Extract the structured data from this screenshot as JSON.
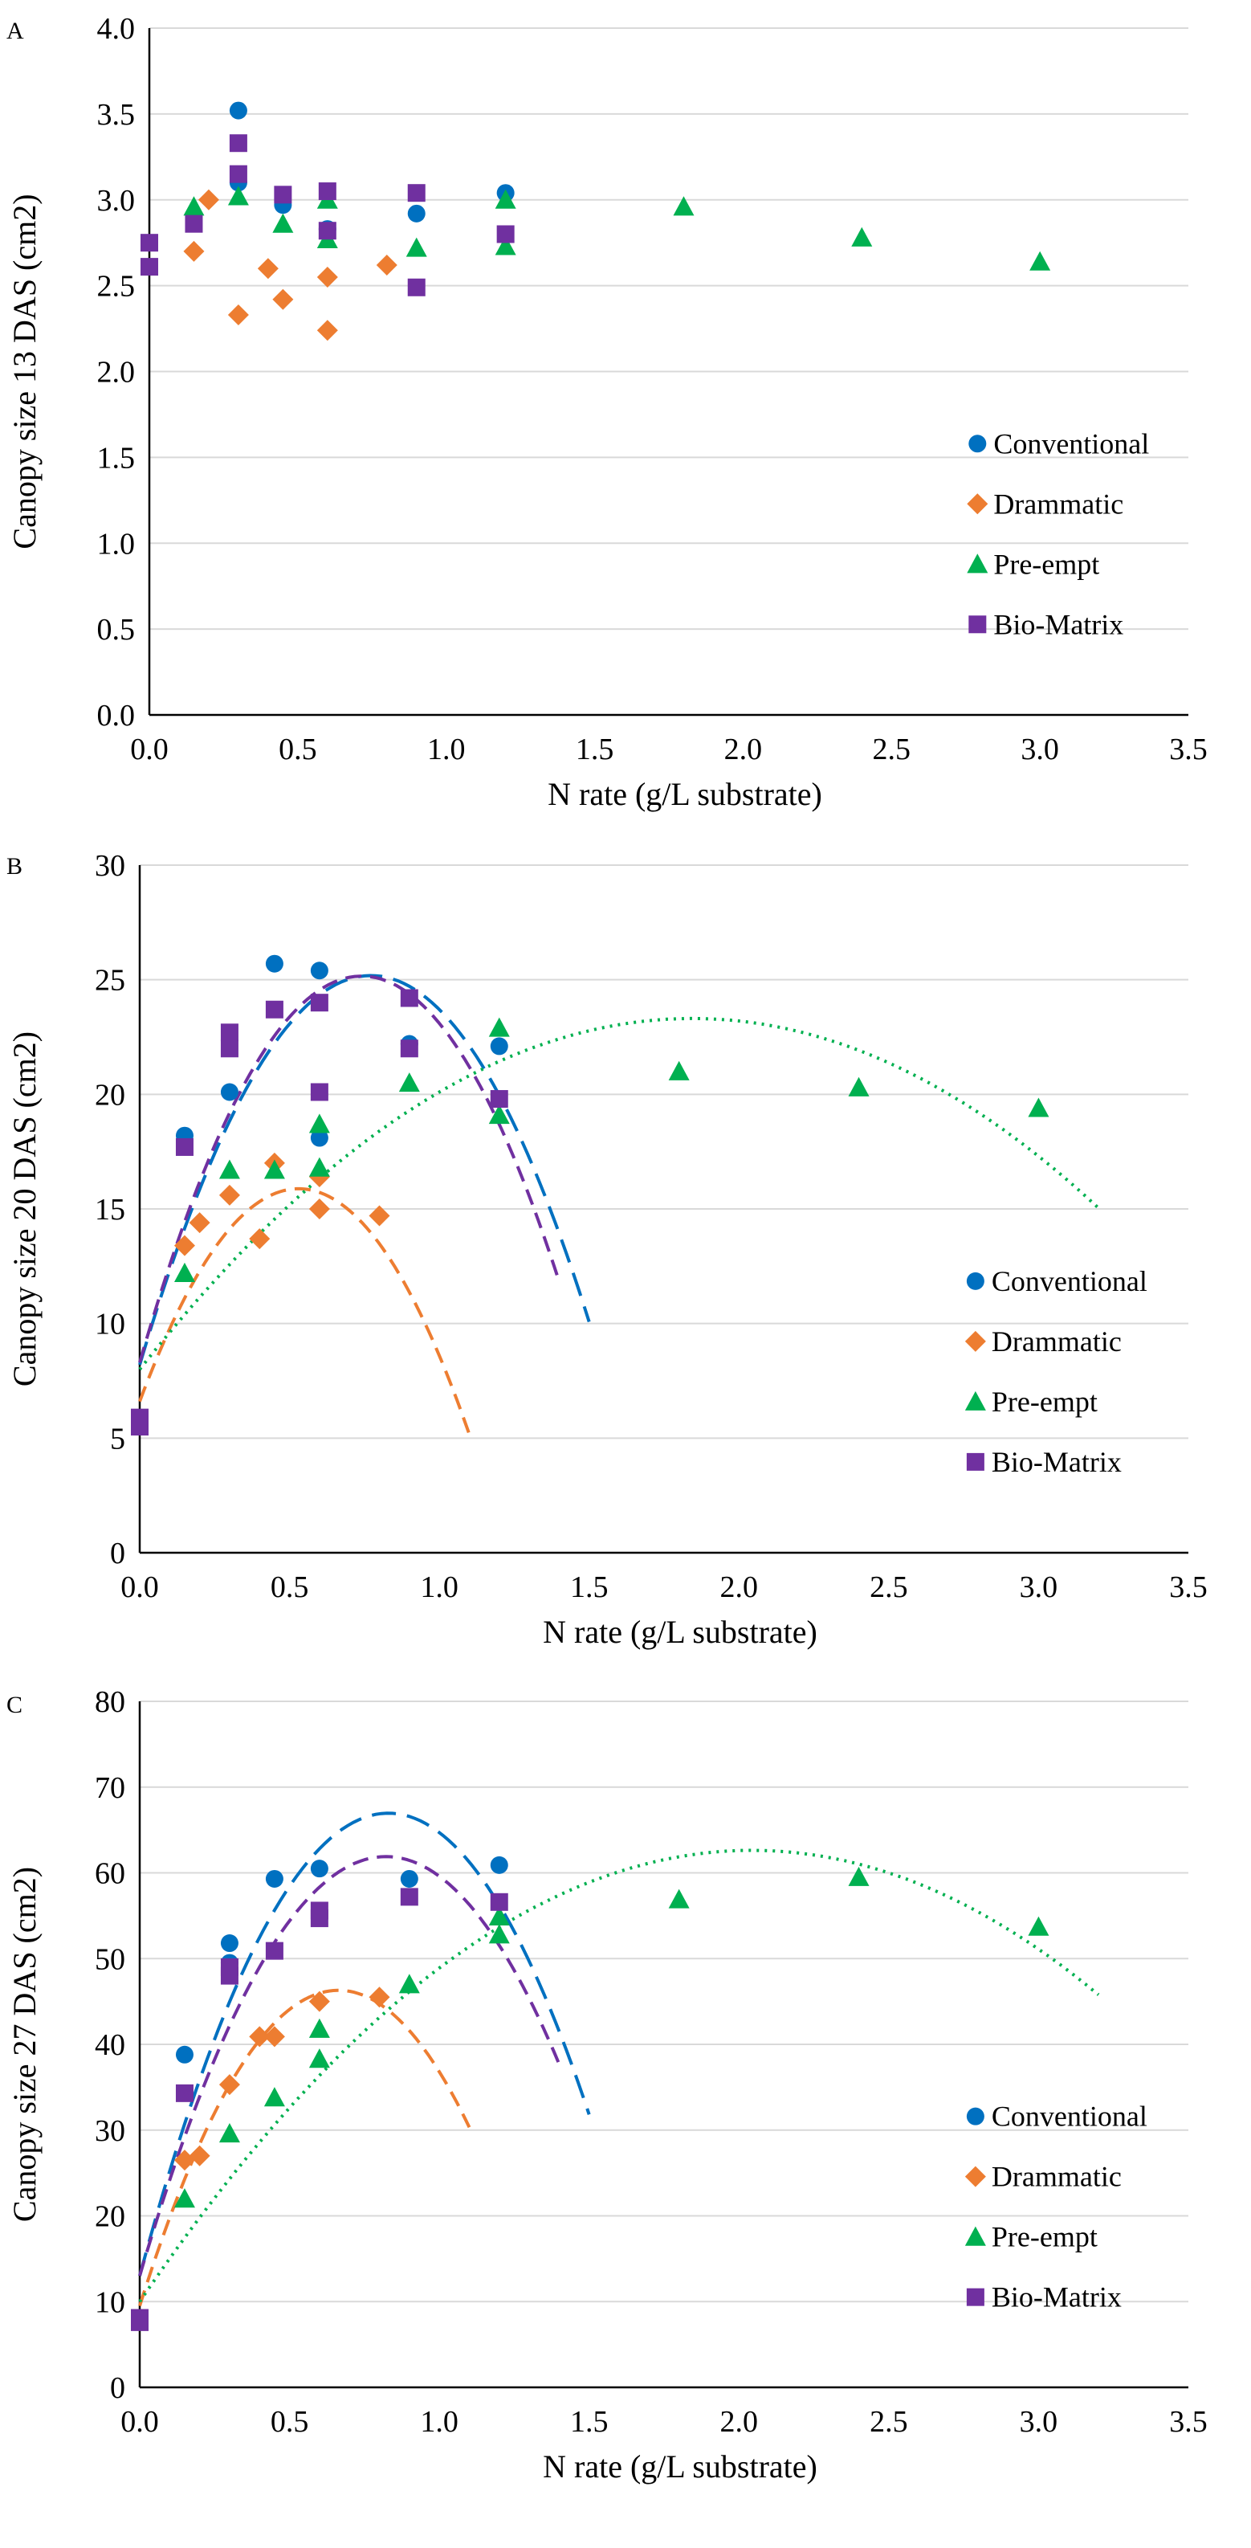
{
  "colors": {
    "Conventional": "#0070c0",
    "Drammatic": "#ed7d31",
    "Pre-empt": "#00b050",
    "Bio-Matrix": "#7030a0",
    "grid": "#d9d9d9"
  },
  "chart_data": [
    {
      "type": "scatter",
      "panel": "A",
      "title": "",
      "xlabel": "N rate (g/L substrate)",
      "ylabel": "Canopy size 13 DAS (cm2)",
      "xlim": [
        0,
        3.5
      ],
      "ylim": [
        0,
        4.0
      ],
      "xticks": [
        "0.0",
        "0.5",
        "1.0",
        "1.5",
        "2.0",
        "2.5",
        "3.0",
        "3.5"
      ],
      "yticks": [
        "0.0",
        "0.5",
        "1.0",
        "1.5",
        "2.0",
        "2.5",
        "3.0",
        "3.5",
        "4.0"
      ],
      "grid": true,
      "legend": "bottom-right",
      "series": [
        {
          "name": "Conventional",
          "marker": "circle",
          "points": [
            [
              0.3,
              3.52
            ],
            [
              0.3,
              3.1
            ],
            [
              0.45,
              2.97
            ],
            [
              0.6,
              2.83
            ],
            [
              0.9,
              2.92
            ],
            [
              1.2,
              3.04
            ]
          ],
          "fit": null
        },
        {
          "name": "Drammatic",
          "marker": "diamond",
          "points": [
            [
              0.15,
              2.7
            ],
            [
              0.2,
              3.0
            ],
            [
              0.3,
              2.33
            ],
            [
              0.4,
              2.6
            ],
            [
              0.45,
              2.42
            ],
            [
              0.6,
              2.55
            ],
            [
              0.6,
              2.24
            ],
            [
              0.8,
              2.62
            ]
          ],
          "fit": null
        },
        {
          "name": "Pre-empt",
          "marker": "triangle",
          "points": [
            [
              0.15,
              2.96
            ],
            [
              0.3,
              3.02
            ],
            [
              0.45,
              2.86
            ],
            [
              0.6,
              3.0
            ],
            [
              0.6,
              2.77
            ],
            [
              0.9,
              2.72
            ],
            [
              1.2,
              3.0
            ],
            [
              1.2,
              2.73
            ],
            [
              1.8,
              2.96
            ],
            [
              2.4,
              2.78
            ],
            [
              3.0,
              2.64
            ]
          ],
          "fit": null
        },
        {
          "name": "Bio-Matrix",
          "marker": "square",
          "points": [
            [
              0.0,
              2.75
            ],
            [
              0.0,
              2.61
            ],
            [
              0.15,
              2.86
            ],
            [
              0.3,
              3.33
            ],
            [
              0.3,
              3.15
            ],
            [
              0.45,
              3.03
            ],
            [
              0.6,
              3.05
            ],
            [
              0.6,
              2.82
            ],
            [
              0.9,
              3.04
            ],
            [
              0.9,
              2.49
            ],
            [
              1.2,
              2.8
            ]
          ],
          "fit": null
        }
      ]
    },
    {
      "type": "scatter",
      "panel": "B",
      "title": "",
      "xlabel": "N rate (g/L substrate)",
      "ylabel": "Canopy size 20 DAS (cm2)",
      "xlim": [
        0,
        3.5
      ],
      "ylim": [
        0,
        30
      ],
      "xticks": [
        "0.0",
        "0.5",
        "1.0",
        "1.5",
        "2.0",
        "2.5",
        "3.0",
        "3.5"
      ],
      "yticks": [
        "0",
        "5",
        "10",
        "15",
        "20",
        "25",
        "30"
      ],
      "grid": true,
      "legend": "bottom-right",
      "series": [
        {
          "name": "Conventional",
          "marker": "circle",
          "points": [
            [
              0.15,
              18.2
            ],
            [
              0.3,
              20.1
            ],
            [
              0.45,
              25.7
            ],
            [
              0.6,
              25.4
            ],
            [
              0.6,
              18.1
            ],
            [
              0.9,
              22.2
            ],
            [
              1.2,
              22.1
            ]
          ],
          "fit": {
            "style": "long-dash",
            "x_range": [
              0,
              1.5
            ],
            "coef": [
              8.2,
              44.0,
              -28.5
            ]
          }
        },
        {
          "name": "Drammatic",
          "marker": "diamond",
          "points": [
            [
              0.15,
              13.4
            ],
            [
              0.2,
              14.4
            ],
            [
              0.3,
              15.6
            ],
            [
              0.4,
              13.7
            ],
            [
              0.45,
              17.0
            ],
            [
              0.6,
              16.4
            ],
            [
              0.6,
              15.0
            ],
            [
              0.8,
              14.7
            ]
          ],
          "fit": {
            "style": "dash",
            "x_range": [
              0,
              1.1
            ],
            "coef": [
              6.6,
              35.0,
              -33.0
            ]
          }
        },
        {
          "name": "Pre-empt",
          "marker": "triangle",
          "points": [
            [
              0.15,
              12.2
            ],
            [
              0.3,
              16.7
            ],
            [
              0.45,
              16.7
            ],
            [
              0.6,
              18.7
            ],
            [
              0.6,
              16.8
            ],
            [
              0.9,
              20.5
            ],
            [
              1.2,
              22.9
            ],
            [
              1.2,
              19.1
            ],
            [
              1.8,
              21.0
            ],
            [
              2.4,
              20.3
            ],
            [
              3.0,
              19.4
            ]
          ],
          "fit": {
            "style": "dot",
            "x_range": [
              0,
              3.2
            ],
            "coef": [
              8.0,
              16.6,
              -4.5
            ]
          }
        },
        {
          "name": "Bio-Matrix",
          "marker": "square",
          "points": [
            [
              0.0,
              5.9
            ],
            [
              0.0,
              5.5
            ],
            [
              0.15,
              17.7
            ],
            [
              0.3,
              22.7
            ],
            [
              0.3,
              22.0
            ],
            [
              0.45,
              23.7
            ],
            [
              0.6,
              24.0
            ],
            [
              0.6,
              20.1
            ],
            [
              0.9,
              24.2
            ],
            [
              0.9,
              22.0
            ],
            [
              1.2,
              19.8
            ]
          ],
          "fit": {
            "style": "dash",
            "x_range": [
              0,
              1.4
            ],
            "coef": [
              8.3,
              45.5,
              -30.7
            ]
          }
        }
      ]
    },
    {
      "type": "scatter",
      "panel": "C",
      "title": "",
      "xlabel": "N rate (g/L substrate)",
      "ylabel": "Canopy size 27 DAS (cm2)",
      "xlim": [
        0,
        3.5
      ],
      "ylim": [
        0,
        80
      ],
      "xticks": [
        "0.0",
        "0.5",
        "1.0",
        "1.5",
        "2.0",
        "2.5",
        "3.0",
        "3.5"
      ],
      "yticks": [
        "0",
        "10",
        "20",
        "30",
        "40",
        "50",
        "60",
        "70",
        "80"
      ],
      "grid": true,
      "legend": "bottom-right",
      "series": [
        {
          "name": "Conventional",
          "marker": "circle",
          "points": [
            [
              0.15,
              38.8
            ],
            [
              0.3,
              51.8
            ],
            [
              0.3,
              49.5
            ],
            [
              0.45,
              59.3
            ],
            [
              0.6,
              60.5
            ],
            [
              0.9,
              59.3
            ],
            [
              1.2,
              60.9
            ]
          ],
          "fit": {
            "style": "long-dash",
            "x_range": [
              0,
              1.5
            ],
            "coef": [
              13.0,
              130.0,
              -78.3
            ]
          }
        },
        {
          "name": "Drammatic",
          "marker": "diamond",
          "points": [
            [
              0.15,
              26.5
            ],
            [
              0.2,
              27.0
            ],
            [
              0.3,
              35.3
            ],
            [
              0.4,
              40.9
            ],
            [
              0.45,
              40.9
            ],
            [
              0.6,
              45.0
            ],
            [
              0.8,
              45.5
            ]
          ],
          "fit": {
            "style": "dash",
            "x_range": [
              0,
              1.1
            ],
            "coef": [
              9.5,
              111.0,
              -83.7
            ]
          }
        },
        {
          "name": "Pre-empt",
          "marker": "triangle",
          "points": [
            [
              0.15,
              22.0
            ],
            [
              0.3,
              29.6
            ],
            [
              0.45,
              33.8
            ],
            [
              0.6,
              41.8
            ],
            [
              0.6,
              38.3
            ],
            [
              0.9,
              47.0
            ],
            [
              1.2,
              54.9
            ],
            [
              1.2,
              52.8
            ],
            [
              1.8,
              56.9
            ],
            [
              2.4,
              59.5
            ],
            [
              3.0,
              53.7
            ]
          ],
          "fit": {
            "style": "dot",
            "x_range": [
              0,
              3.2
            ],
            "coef": [
              10.0,
              51.5,
              -12.6
            ]
          }
        },
        {
          "name": "Bio-Matrix",
          "marker": "square",
          "points": [
            [
              0.0,
              8.1
            ],
            [
              0.0,
              7.6
            ],
            [
              0.15,
              34.3
            ],
            [
              0.3,
              49.0
            ],
            [
              0.3,
              48.0
            ],
            [
              0.45,
              50.9
            ],
            [
              0.6,
              55.6
            ],
            [
              0.6,
              54.7
            ],
            [
              0.9,
              57.2
            ],
            [
              1.2,
              56.6
            ]
          ],
          "fit": {
            "style": "dash",
            "x_range": [
              0,
              1.4
            ],
            "coef": [
              13.0,
              119.0,
              -72.4
            ]
          }
        }
      ]
    }
  ]
}
